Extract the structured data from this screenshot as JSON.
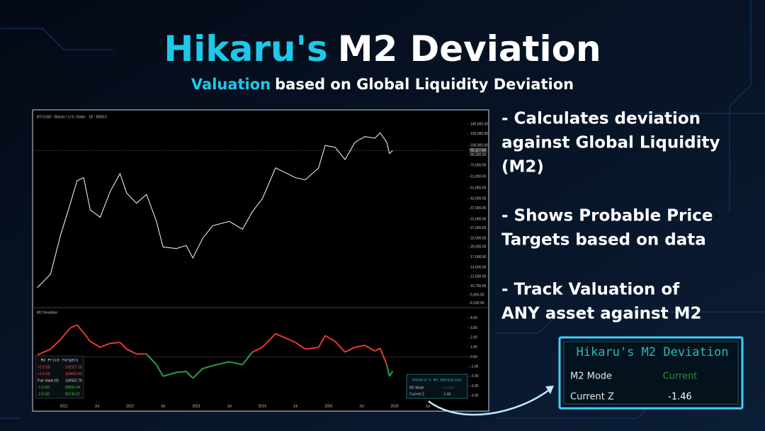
{
  "header": {
    "title_accent": "Hikaru's",
    "title_rest": "M2 Deviation",
    "subtitle_accent": "Valuation",
    "subtitle_rest": "based on Global Liquidity Deviation"
  },
  "bullets": [
    [
      "- Calculates deviation",
      "against Global Liquidity",
      "(M2)"
    ],
    [
      "- Shows Probable Price",
      "Targets based on data"
    ],
    [
      "- Track Valuation of",
      "ANY asset against M2"
    ]
  ],
  "chart_data": [
    {
      "type": "line",
      "title": "BTCUSD · Bitcoin / U.S. Dollar · 1D · INDEX",
      "log_scale": true,
      "x": [
        2020.6,
        2020.8,
        2020.95,
        2021.1,
        2021.2,
        2021.3,
        2021.4,
        2021.55,
        2021.7,
        2021.85,
        2021.95,
        2022.1,
        2022.25,
        2022.4,
        2022.5,
        2022.7,
        2022.85,
        2022.95,
        2023.1,
        2023.25,
        2023.5,
        2023.7,
        2023.85,
        2024.0,
        2024.2,
        2024.5,
        2024.65,
        2024.85,
        2024.95,
        2025.1,
        2025.25,
        2025.4,
        2025.55,
        2025.7,
        2025.78,
        2025.88,
        2025.92,
        2025.97
      ],
      "series": [
        {
          "color": "#ffffff",
          "values": [
            10500,
            13000,
            24000,
            40000,
            57000,
            60000,
            36000,
            32000,
            48000,
            64000,
            47000,
            40000,
            46000,
            30000,
            20000,
            19500,
            20500,
            16800,
            23000,
            28000,
            30000,
            26500,
            35000,
            43000,
            70000,
            60000,
            58000,
            70000,
            100000,
            97000,
            80000,
            105000,
            115000,
            112000,
            122000,
            105000,
            88000,
            92000
          ]
        }
      ],
      "xlim": [
        2020.55,
        2027.1
      ],
      "ylim": [
        8000,
        145000
      ],
      "yticks": [
        {
          "value": 8190,
          "label": "8,190.00"
        },
        {
          "value": 9350,
          "label": "9,350.00"
        },
        {
          "value": 10750,
          "label": "10,750.00"
        },
        {
          "value": 12500,
          "label": "12,500.00"
        },
        {
          "value": 14500,
          "label": "14,500.00"
        },
        {
          "value": 17000,
          "label": "17,000.00"
        },
        {
          "value": 20000,
          "label": "20,000.00"
        },
        {
          "value": 23000,
          "label": "23,000.00"
        },
        {
          "value": 27000,
          "label": "27,000.00"
        },
        {
          "value": 31000,
          "label": "31,000.00"
        },
        {
          "value": 37000,
          "label": "37,000.00"
        },
        {
          "value": 43000,
          "label": "43,000.00"
        },
        {
          "value": 51000,
          "label": "51,000.00"
        },
        {
          "value": 61000,
          "label": "61,000.00"
        },
        {
          "value": 73000,
          "label": "73,000.00"
        },
        {
          "value": 86000,
          "label": "86,000.00"
        },
        {
          "value": 100000,
          "label": "100,000.00"
        },
        {
          "value": 120000,
          "label": "120,000.00"
        },
        {
          "value": 140000,
          "label": "140,000.00"
        }
      ],
      "last_price": {
        "value": 92117.56,
        "label": "92,117.56"
      }
    },
    {
      "type": "line",
      "title": "M2 Deviation",
      "positive_color": "#e53935",
      "negative_color": "#2ea043",
      "x": [
        2020.6,
        2020.8,
        2020.95,
        2021.1,
        2021.2,
        2021.3,
        2021.4,
        2021.55,
        2021.7,
        2021.85,
        2021.95,
        2022.1,
        2022.25,
        2022.4,
        2022.5,
        2022.7,
        2022.85,
        2022.95,
        2023.1,
        2023.25,
        2023.5,
        2023.7,
        2023.85,
        2024.0,
        2024.2,
        2024.5,
        2024.65,
        2024.85,
        2024.95,
        2025.1,
        2025.25,
        2025.4,
        2025.55,
        2025.7,
        2025.78,
        2025.88,
        2025.92,
        2025.97
      ],
      "series": [
        {
          "values": [
            0.2,
            0.8,
            1.8,
            3.0,
            3.3,
            2.5,
            1.6,
            1.0,
            1.4,
            1.5,
            0.8,
            0.3,
            0.3,
            -0.8,
            -2.0,
            -1.6,
            -1.5,
            -2.2,
            -1.2,
            -0.9,
            -0.5,
            -0.8,
            0.5,
            1.0,
            2.4,
            1.5,
            0.8,
            1.0,
            2.2,
            1.6,
            0.5,
            1.0,
            1.2,
            0.6,
            0.9,
            -0.8,
            -2.0,
            -1.46
          ]
        }
      ],
      "xlim": [
        2020.55,
        2027.1
      ],
      "ylim": [
        -4.5,
        4.5
      ],
      "yticks": [
        {
          "value": 4,
          "label": "4.00"
        },
        {
          "value": 3,
          "label": "3.00"
        },
        {
          "value": 2,
          "label": "2.00"
        },
        {
          "value": 1,
          "label": "1.00"
        },
        {
          "value": 0,
          "label": "0.00"
        },
        {
          "value": -1,
          "label": "-1.00"
        },
        {
          "value": -2,
          "label": "-2.00"
        },
        {
          "value": -3,
          "label": "-3.00"
        },
        {
          "value": -4,
          "label": "-4.00"
        }
      ],
      "xticks": [
        {
          "value": 2021,
          "label": "2021"
        },
        {
          "value": 2021.5,
          "label": "Jul"
        },
        {
          "value": 2022,
          "label": "2022"
        },
        {
          "value": 2022.5,
          "label": "Jul"
        },
        {
          "value": 2023,
          "label": "2023"
        },
        {
          "value": 2023.5,
          "label": "Jul"
        },
        {
          "value": 2024,
          "label": "2024"
        },
        {
          "value": 2024.5,
          "label": "Jul"
        },
        {
          "value": 2025,
          "label": "2025"
        },
        {
          "value": 2025.5,
          "label": "Jul"
        },
        {
          "value": 2026,
          "label": "2026"
        },
        {
          "value": 2026.5,
          "label": "Jul"
        }
      ]
    }
  ],
  "price_targets": {
    "title": "M2 Price Targets",
    "rows": [
      [
        "+2.0 SD",
        "132927.20"
      ],
      [
        "+1.0 SD",
        "118423.43"
      ],
      [
        "Fair Value (0)",
        "105502.79"
      ],
      [
        "-1.0 SD",
        "93991.54"
      ],
      [
        "-2.0 SD",
        "83736.37"
      ]
    ]
  },
  "indicator": {
    "title": "Hikaru's M2 Deviation",
    "rows": [
      [
        "M2 Mode",
        "Current"
      ],
      [
        "Current Z",
        "-1.46"
      ]
    ]
  }
}
